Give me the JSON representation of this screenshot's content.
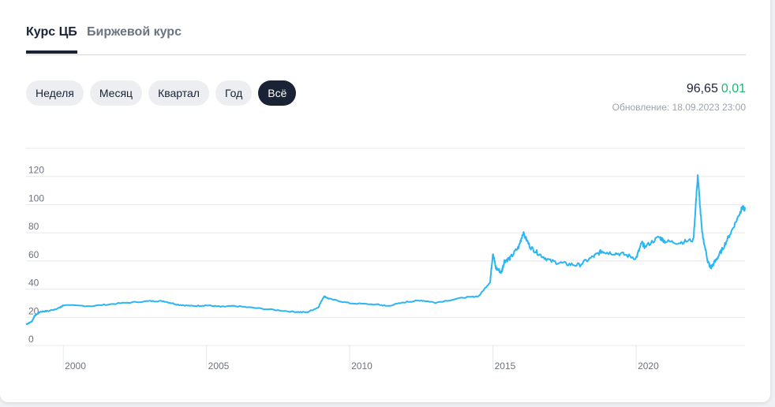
{
  "tabs": [
    {
      "label": "Курс ЦБ",
      "active": true
    },
    {
      "label": "Биржевой курс",
      "active": false
    }
  ],
  "periods": [
    {
      "label": "Неделя"
    },
    {
      "label": "Месяц"
    },
    {
      "label": "Квартал"
    },
    {
      "label": "Год"
    },
    {
      "label": "Всё",
      "active": true
    }
  ],
  "rate": {
    "value": "96,65",
    "change": "0,01",
    "updated": "Обновление: 18.09.2023 23:00"
  },
  "colors": {
    "line": "#2bb5f3",
    "accent": "#1a2336",
    "positive": "#22b573"
  },
  "chart_data": {
    "type": "line",
    "grid": true,
    "ylim": [
      0,
      140
    ],
    "xlim": [
      1998.7,
      2023.8
    ],
    "yticks": [
      0,
      20,
      40,
      60,
      80,
      100,
      120
    ],
    "xticks": [
      2000,
      2005,
      2010,
      2015,
      2020
    ],
    "x": [
      1998.7,
      1998.9,
      1999.0,
      1999.2,
      1999.5,
      1999.9,
      2000,
      2001,
      2002,
      2003,
      2003.5,
      2004,
      2004.5,
      2005,
      2005.5,
      2006,
      2007,
      2008,
      2008.5,
      2008.9,
      2009.1,
      2009.3,
      2010,
      2011,
      2011.3,
      2012,
      2012.5,
      2013,
      2014,
      2014.5,
      2014.9,
      2015,
      2015.1,
      2015.3,
      2015.4,
      2015.6,
      2015.9,
      2016.05,
      2016.3,
      2016.6,
      2017,
      2017.5,
      2018,
      2018.5,
      2018.8,
      2019,
      2019.5,
      2020,
      2020.2,
      2020.3,
      2020.8,
      2021,
      2021.5,
      2022,
      2022.15,
      2022.3,
      2022.5,
      2022.6,
      2022.8,
      2023,
      2023.3,
      2023.6,
      2023.7,
      2023.8
    ],
    "values": [
      15,
      17,
      21,
      24,
      24.5,
      27,
      28.5,
      28,
      30,
      31.5,
      31.5,
      29,
      28,
      28.5,
      27.5,
      28,
      26,
      24,
      23.5,
      27,
      35,
      33,
      30,
      29,
      28,
      31,
      32,
      30.5,
      34,
      35,
      45,
      66,
      55,
      52,
      60,
      62,
      70,
      80,
      70,
      65,
      60,
      58,
      57,
      63,
      67,
      66,
      65,
      62,
      73,
      70,
      77,
      74,
      73,
      75,
      121,
      80,
      60,
      55,
      61,
      68,
      80,
      93,
      98,
      96.65
    ]
  }
}
